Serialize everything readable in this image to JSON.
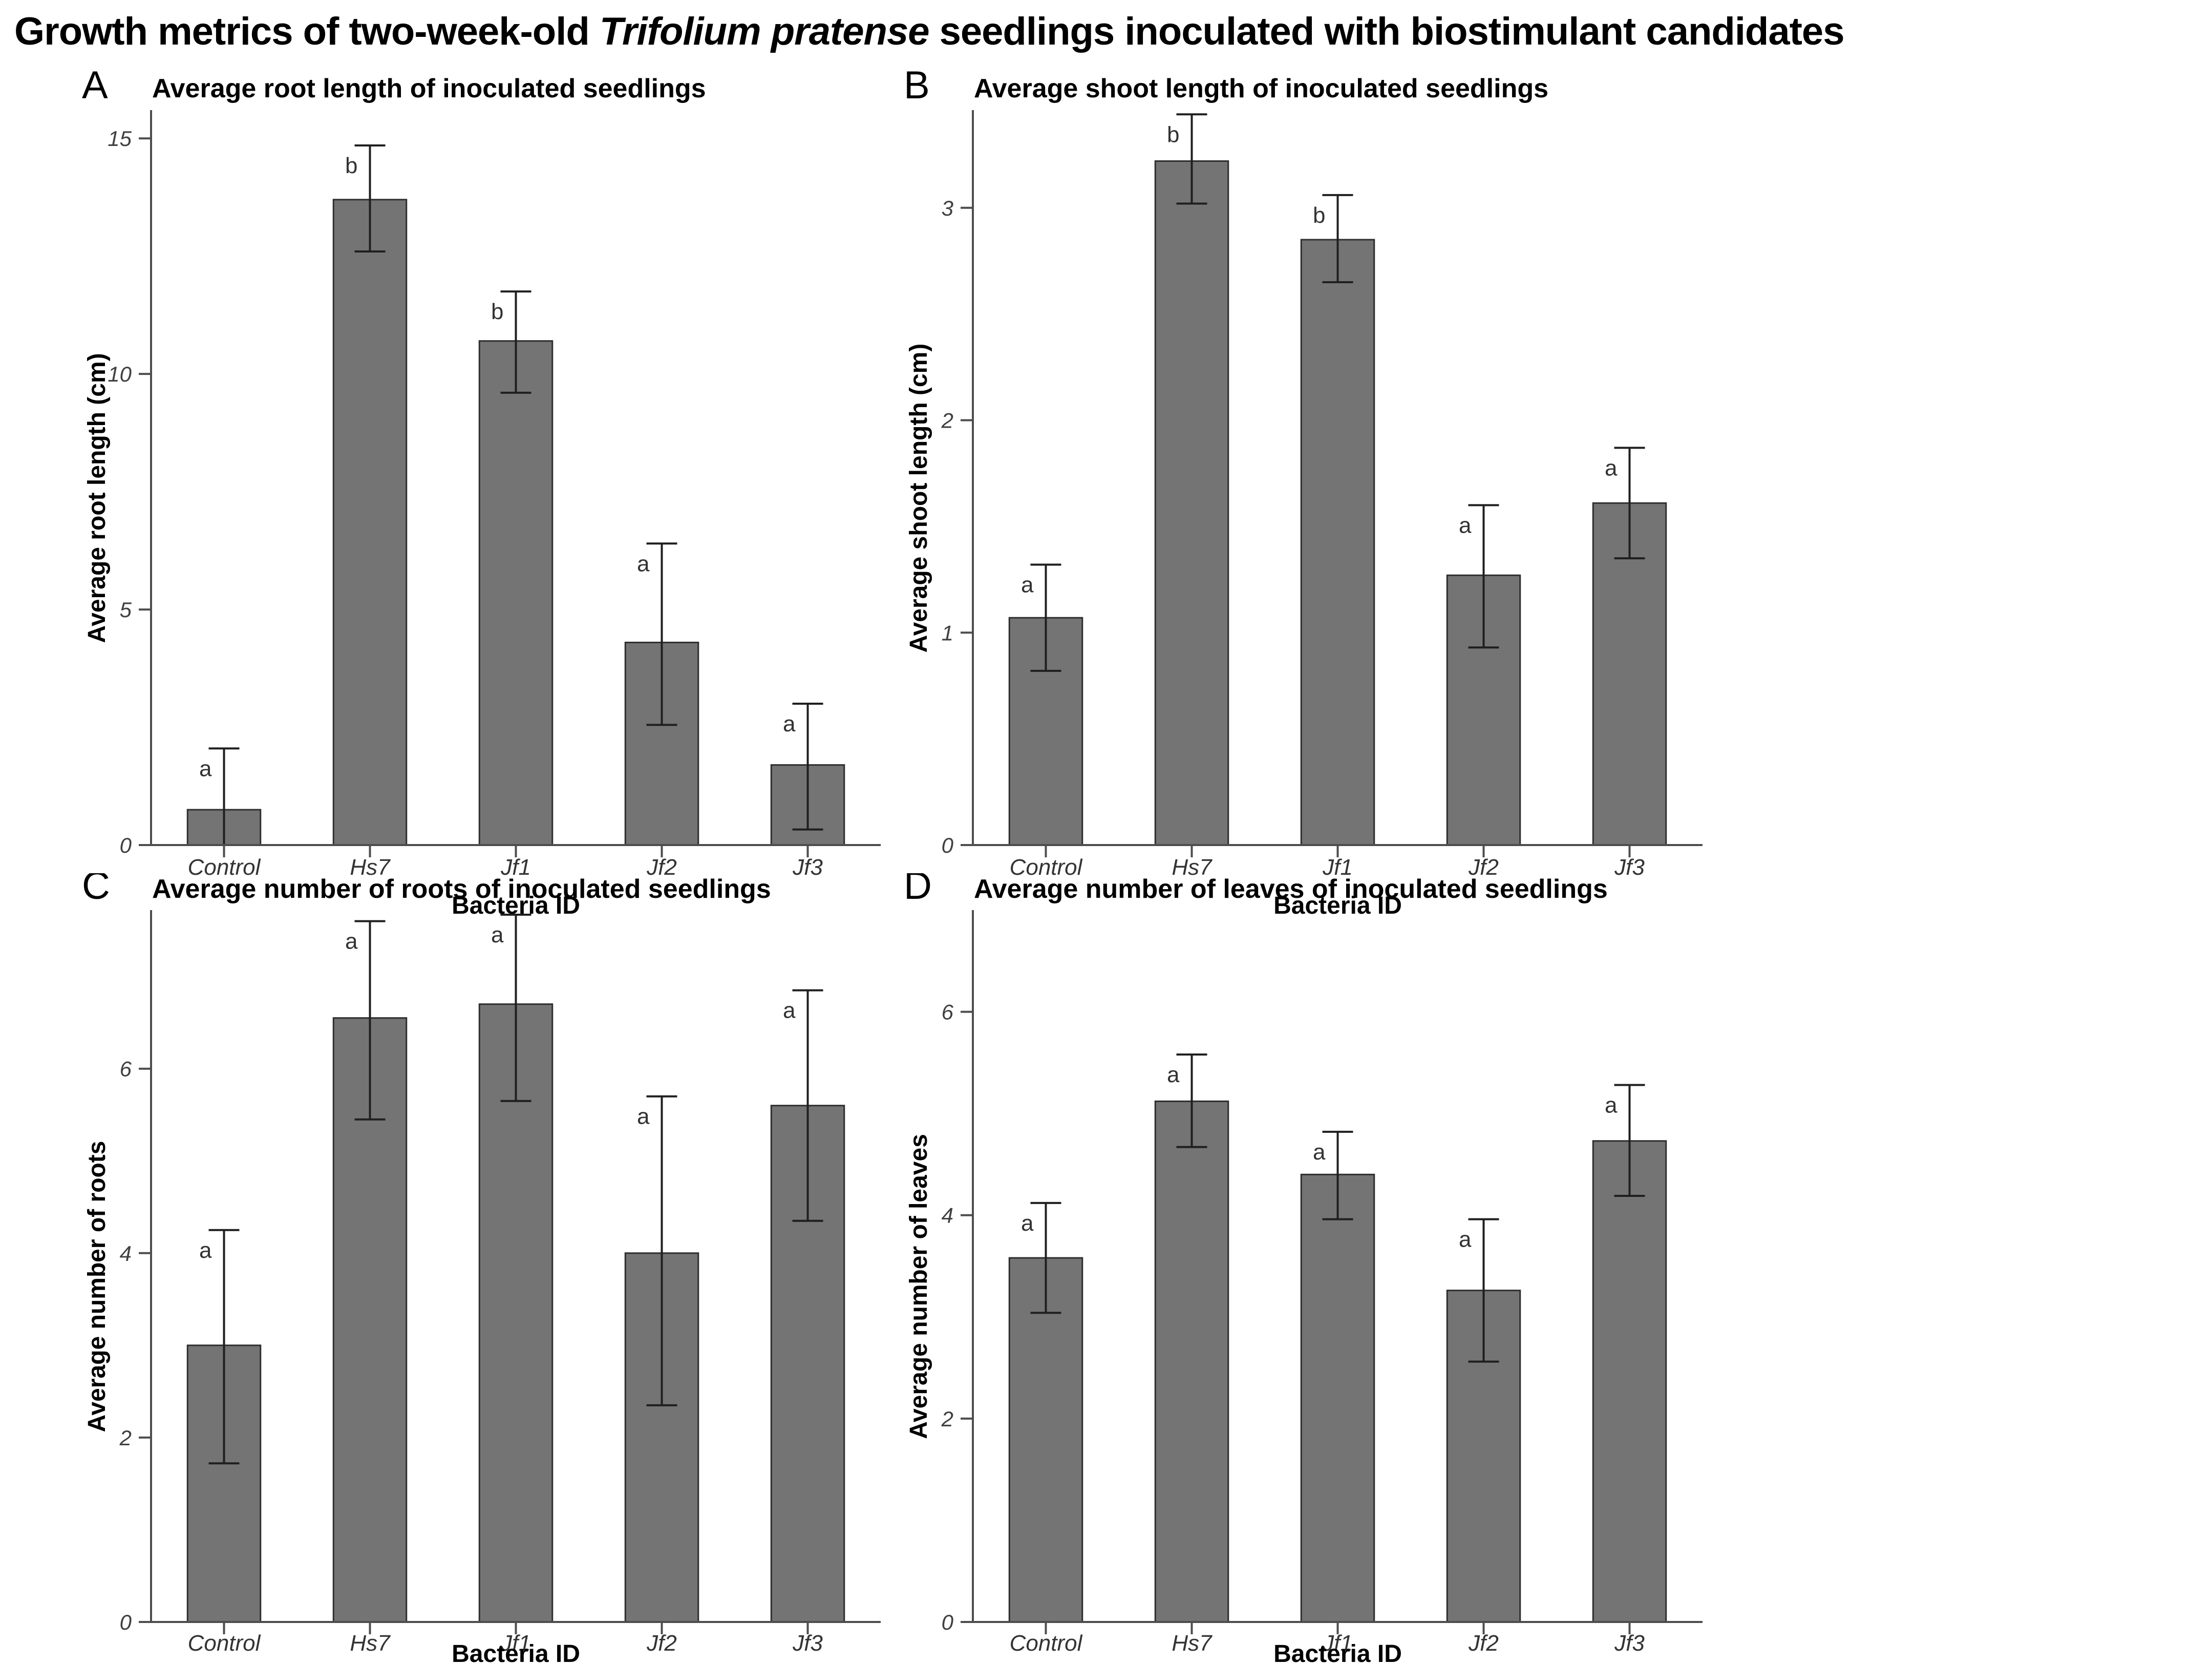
{
  "figure_title": {
    "prefix": "Growth metrics of two-week-old ",
    "species": "Trifolium pratense",
    "suffix": " seedlings inoculated with biostimulant candidates"
  },
  "x_axis_label": "Bacteria ID",
  "categories": [
    "Control",
    "Hs7",
    "Jf1",
    "Jf2",
    "Jf3"
  ],
  "style": {
    "bar_fill": "#747474",
    "bar_stroke": "#2e2e2e",
    "error_color": "#1f1f1f",
    "axis_color": "#4d4d4d",
    "tick_label_color": "#404040",
    "sig_letter_color": "#333333",
    "title_color": "#000000"
  },
  "chart_data": [
    {
      "panel_letter": "A",
      "type": "bar",
      "title": "Average root length of inoculated seedlings",
      "ylabel": "Average root length (cm)",
      "xlabel": "Bacteria ID",
      "categories": [
        "Control",
        "Hs7",
        "Jf1",
        "Jf2",
        "Jf3"
      ],
      "values": [
        0.75,
        13.7,
        10.7,
        4.3,
        1.7
      ],
      "error_high": [
        2.05,
        14.85,
        11.75,
        6.4,
        3.0
      ],
      "error_low": [
        -0.55,
        12.6,
        9.6,
        2.55,
        0.33
      ],
      "sig_letters": [
        "a",
        "b",
        "b",
        "a",
        "a"
      ],
      "yticks": [
        0,
        5,
        10,
        15
      ],
      "ylim": [
        0,
        15.6
      ],
      "grid": false,
      "legend": "none"
    },
    {
      "panel_letter": "B",
      "type": "bar",
      "title": "Average shoot length of inoculated seedlings",
      "ylabel": "Average shoot length (cm)",
      "xlabel": "Bacteria ID",
      "categories": [
        "Control",
        "Hs7",
        "Jf1",
        "Jf2",
        "Jf3"
      ],
      "values": [
        1.07,
        3.22,
        2.85,
        1.27,
        1.61
      ],
      "error_high": [
        1.32,
        3.44,
        3.06,
        1.6,
        1.87
      ],
      "error_low": [
        0.82,
        3.02,
        2.65,
        0.93,
        1.35
      ],
      "sig_letters": [
        "a",
        "b",
        "b",
        "a",
        "a"
      ],
      "yticks": [
        0,
        1,
        2,
        3
      ],
      "ylim": [
        0,
        3.46
      ],
      "grid": false,
      "legend": "none"
    },
    {
      "panel_letter": "C",
      "type": "bar",
      "title": "Average number of roots of inoculated seedlings",
      "ylabel": "Average number of roots",
      "xlabel": "Bacteria ID",
      "categories": [
        "Control",
        "Hs7",
        "Jf1",
        "Jf2",
        "Jf3"
      ],
      "values": [
        3.0,
        6.55,
        6.7,
        4.0,
        5.6
      ],
      "error_high": [
        4.25,
        7.6,
        7.67,
        5.7,
        6.85
      ],
      "error_low": [
        1.72,
        5.45,
        5.65,
        2.35,
        4.35
      ],
      "sig_letters": [
        "a",
        "a",
        "a",
        "a",
        "a"
      ],
      "yticks": [
        0,
        2,
        4,
        6
      ],
      "ylim": [
        0,
        7.72
      ],
      "grid": false,
      "legend": "none"
    },
    {
      "panel_letter": "D",
      "type": "bar",
      "title": "Average number of leaves of inoculated seedlings",
      "ylabel": "Average number of leaves",
      "xlabel": "Bacteria ID",
      "categories": [
        "Control",
        "Hs7",
        "Jf1",
        "Jf2",
        "Jf3"
      ],
      "values": [
        3.58,
        5.12,
        4.4,
        3.26,
        4.73
      ],
      "error_high": [
        4.12,
        5.58,
        4.82,
        3.96,
        5.28
      ],
      "error_low": [
        3.04,
        4.67,
        3.96,
        2.56,
        4.19
      ],
      "sig_letters": [
        "a",
        "a",
        "a",
        "a",
        "a"
      ],
      "yticks": [
        0,
        2,
        4,
        6
      ],
      "ylim": [
        0,
        7.0
      ],
      "grid": false,
      "legend": "none"
    }
  ]
}
